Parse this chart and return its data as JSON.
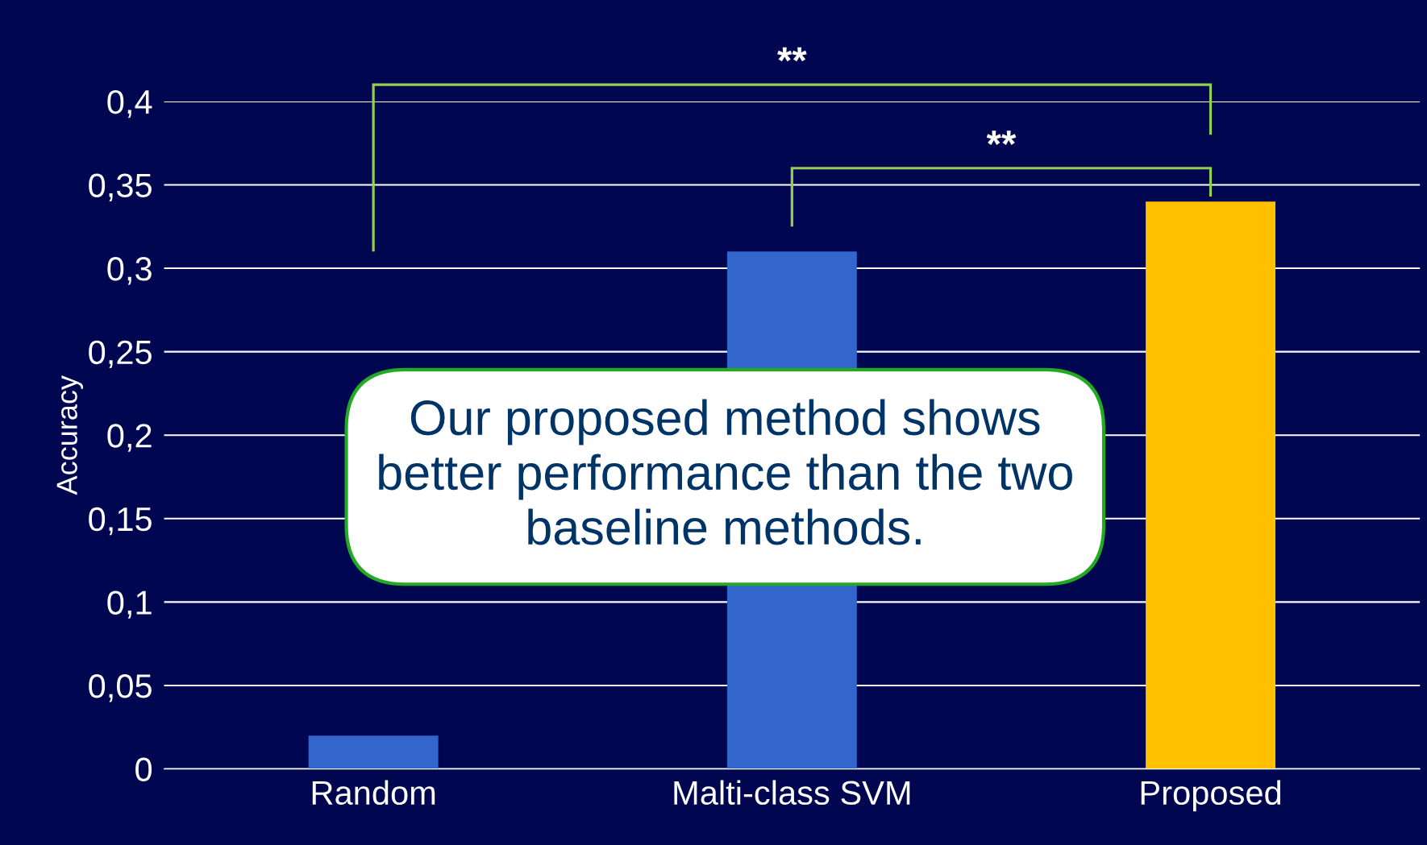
{
  "chart_data": {
    "type": "bar",
    "categories": [
      "Random",
      "Malti-class SVM",
      "Proposed"
    ],
    "values": [
      0.02,
      0.31,
      0.34
    ],
    "colors": [
      "#3366cc",
      "#3366cc",
      "#ffc000"
    ],
    "ylabel": "Accuracy",
    "ylim": [
      0,
      0.4
    ],
    "yticks": [
      {
        "value": 0,
        "label": "0"
      },
      {
        "value": 0.05,
        "label": "0,05"
      },
      {
        "value": 0.1,
        "label": "0,1"
      },
      {
        "value": 0.15,
        "label": "0,15"
      },
      {
        "value": 0.2,
        "label": "0,2"
      },
      {
        "value": 0.25,
        "label": "0,25"
      },
      {
        "value": 0.3,
        "label": "0,3"
      },
      {
        "value": 0.35,
        "label": "0,35"
      },
      {
        "value": 0.4,
        "label": "0,4"
      }
    ],
    "grid": "y",
    "annotations": [
      "**",
      "**",
      "Our proposed method shows\nbetter performance than the two\nbaseline methods."
    ]
  }
}
